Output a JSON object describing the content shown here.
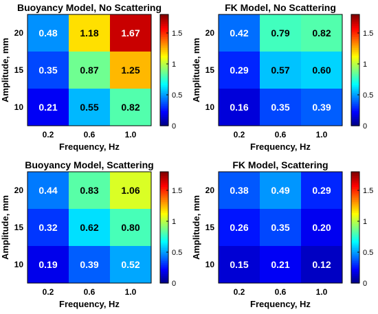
{
  "chart_data": [
    {
      "type": "heatmap",
      "title": "Buoyancy Model, No Scattering",
      "xlabel": "Frequency, Hz",
      "ylabel": "Amplitude, mm",
      "x_categories": [
        "0.2",
        "0.6",
        "1.0"
      ],
      "y_categories": [
        "20",
        "15",
        "10"
      ],
      "values": [
        [
          0.48,
          1.18,
          1.67
        ],
        [
          0.35,
          0.87,
          1.25
        ],
        [
          0.21,
          0.55,
          0.82
        ]
      ],
      "value_labels": [
        [
          "0.48",
          "1.18",
          "1.67"
        ],
        [
          "0.35",
          "0.87",
          "1.25"
        ],
        [
          "0.21",
          "0.55",
          "0.82"
        ]
      ],
      "colorbar": {
        "range": [
          0,
          1.8
        ],
        "ticks": [
          "0",
          "0.5",
          "1",
          "1.5"
        ],
        "colormap": "jet"
      }
    },
    {
      "type": "heatmap",
      "title": "FK Model, No Scattering",
      "xlabel": "Frequency, Hz",
      "ylabel": "Amplitude, mm",
      "x_categories": [
        "0.2",
        "0.6",
        "1.0"
      ],
      "y_categories": [
        "20",
        "15",
        "10"
      ],
      "values": [
        [
          0.42,
          0.79,
          0.82
        ],
        [
          0.29,
          0.57,
          0.6
        ],
        [
          0.16,
          0.35,
          0.39
        ]
      ],
      "value_labels": [
        [
          "0.42",
          "0.79",
          "0.82"
        ],
        [
          "0.29",
          "0.57",
          "0.60"
        ],
        [
          "0.16",
          "0.35",
          "0.39"
        ]
      ],
      "colorbar": {
        "range": [
          0,
          1.8
        ],
        "ticks": [
          "0",
          "0.5",
          "1",
          "1.5"
        ],
        "colormap": "jet"
      }
    },
    {
      "type": "heatmap",
      "title": "Buoyancy Model, Scattering",
      "xlabel": "Frequency, Hz",
      "ylabel": "Amplitude, mm",
      "x_categories": [
        "0.2",
        "0.6",
        "1.0"
      ],
      "y_categories": [
        "20",
        "15",
        "10"
      ],
      "values": [
        [
          0.44,
          0.83,
          1.06
        ],
        [
          0.32,
          0.62,
          0.8
        ],
        [
          0.19,
          0.39,
          0.52
        ]
      ],
      "value_labels": [
        [
          "0.44",
          "0.83",
          "1.06"
        ],
        [
          "0.32",
          "0.62",
          "0.80"
        ],
        [
          "0.19",
          "0.39",
          "0.52"
        ]
      ],
      "colorbar": {
        "range": [
          0,
          1.8
        ],
        "ticks": [
          "0",
          "0.5",
          "1",
          "1.5"
        ],
        "colormap": "jet"
      }
    },
    {
      "type": "heatmap",
      "title": "FK Model, Scattering",
      "xlabel": "Frequency, Hz",
      "ylabel": "Amplitude, mm",
      "x_categories": [
        "0.2",
        "0.6",
        "1.0"
      ],
      "y_categories": [
        "20",
        "15",
        "10"
      ],
      "values": [
        [
          0.38,
          0.49,
          0.29
        ],
        [
          0.26,
          0.35,
          0.2
        ],
        [
          0.15,
          0.21,
          0.12
        ]
      ],
      "value_labels": [
        [
          "0.38",
          "0.49",
          "0.29"
        ],
        [
          "0.26",
          "0.35",
          "0.20"
        ],
        [
          "0.15",
          "0.21",
          "0.12"
        ]
      ],
      "colorbar": {
        "range": [
          0,
          1.8
        ],
        "ticks": [
          "0",
          "0.5",
          "1",
          "1.5"
        ],
        "colormap": "jet"
      }
    }
  ]
}
